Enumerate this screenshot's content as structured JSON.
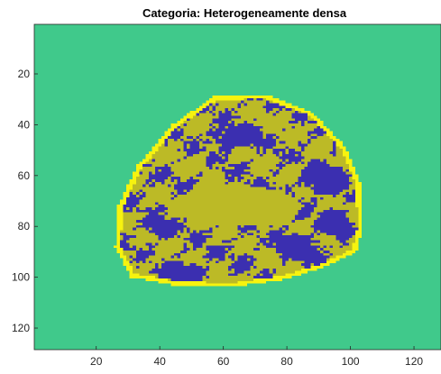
{
  "chart_data": {
    "type": "heatmap",
    "title": "Categoria: Heterogeneamente densa",
    "xlabel": "",
    "ylabel": "",
    "xlim": [
      0.5,
      128.5
    ],
    "ylim": [
      0.5,
      128.5
    ],
    "y_reversed": true,
    "grid": false,
    "x_ticks": [
      20,
      40,
      60,
      80,
      100,
      120
    ],
    "y_ticks": [
      20,
      40,
      60,
      80,
      100,
      120
    ],
    "classes": [
      {
        "value": 0,
        "color": "#40c98b"
      },
      {
        "value": 1,
        "color": "#f7f30f"
      },
      {
        "value": 2,
        "color": "#bcba26"
      },
      {
        "value": 3,
        "color": "#3b2fb0"
      }
    ],
    "breast_region": {
      "outline_points": [
        [
          57,
          29
        ],
        [
          73,
          28
        ],
        [
          88,
          35
        ],
        [
          98,
          48
        ],
        [
          103,
          62
        ],
        [
          104,
          80
        ],
        [
          102,
          90
        ],
        [
          92,
          96
        ],
        [
          79,
          101
        ],
        [
          62,
          104
        ],
        [
          44,
          103
        ],
        [
          31,
          100
        ],
        [
          26,
          88
        ],
        [
          27,
          72
        ],
        [
          33,
          56
        ],
        [
          44,
          40
        ]
      ],
      "dense_blobs": [
        {
          "cx": 49,
          "cy": 98,
          "rx": 9,
          "ry": 5
        },
        {
          "cx": 92,
          "cy": 62,
          "rx": 9,
          "ry": 8
        },
        {
          "cx": 64,
          "cy": 45,
          "rx": 10,
          "ry": 6
        },
        {
          "cx": 84,
          "cy": 88,
          "rx": 9,
          "ry": 6
        },
        {
          "cx": 40,
          "cy": 80,
          "rx": 6,
          "ry": 5
        },
        {
          "cx": 95,
          "cy": 78,
          "rx": 6,
          "ry": 7
        }
      ],
      "fatty_core": {
        "cx": 64,
        "cy": 72,
        "rx": 20,
        "ry": 8
      }
    }
  }
}
